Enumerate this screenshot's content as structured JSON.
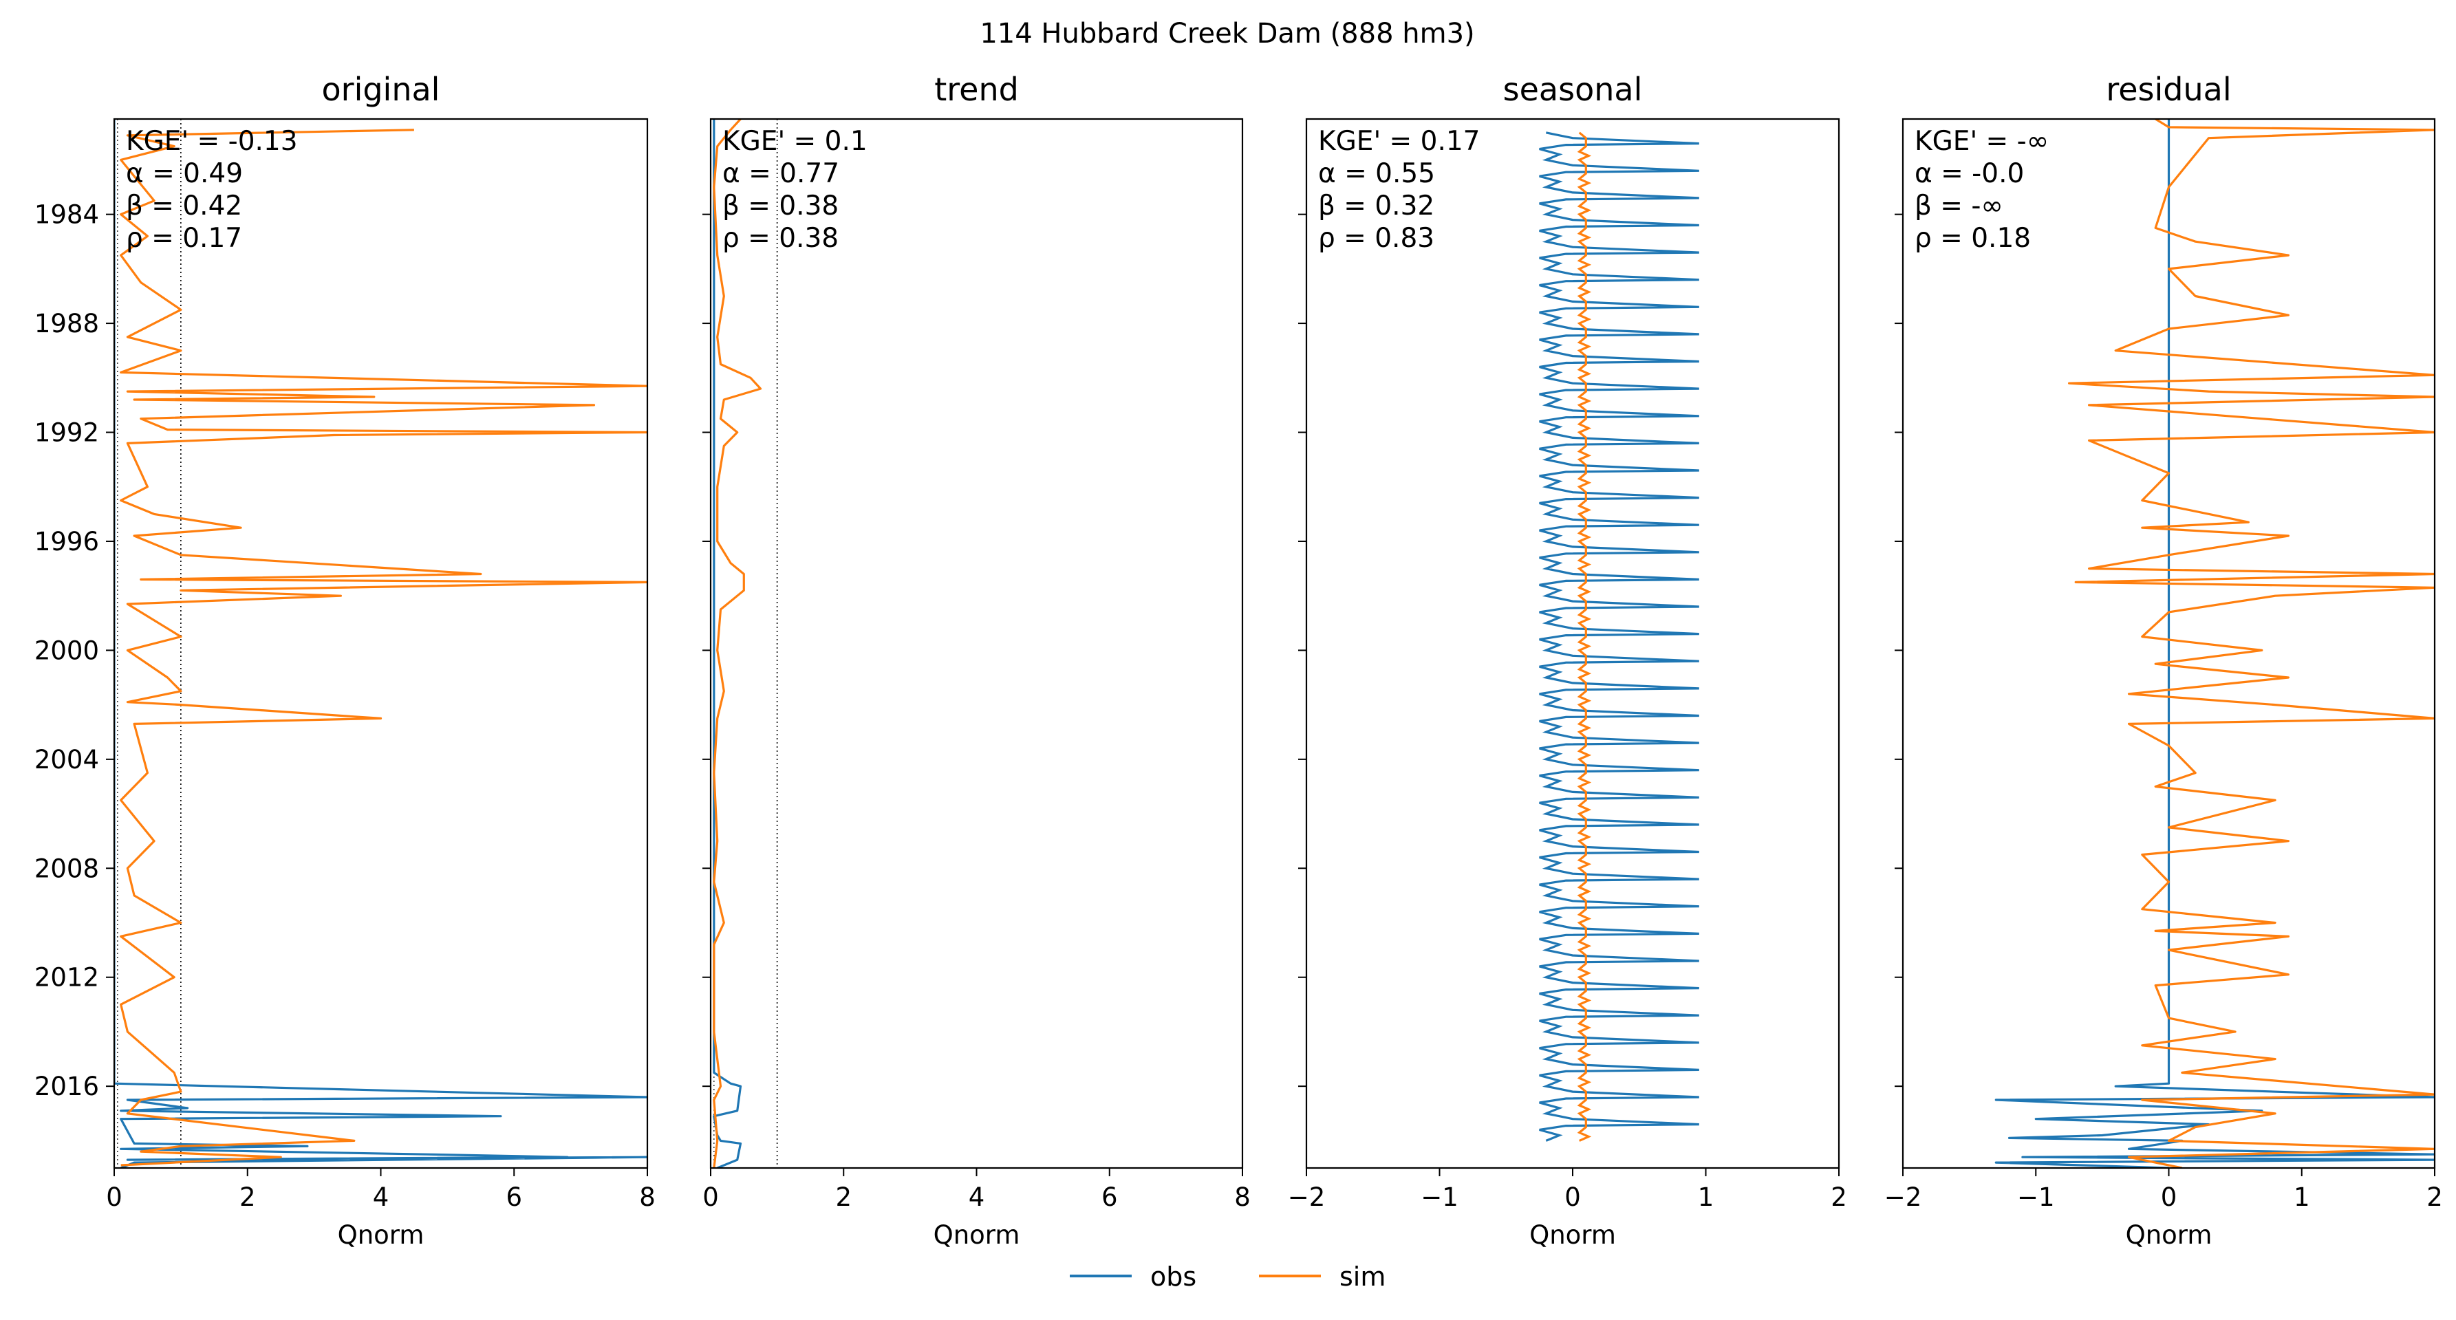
{
  "figure": {
    "title": "114  Hubbard Creek Dam (888 hm3)"
  },
  "colors": {
    "obs": "#1f77b4",
    "sim": "#ff7f0e"
  },
  "legend": [
    {
      "name": "obs",
      "color": "#1f77b4"
    },
    {
      "name": "sim",
      "color": "#ff7f0e"
    }
  ],
  "chart_data": [
    {
      "type": "line",
      "title": "original",
      "xlabel": "Qnorm",
      "xlim": [
        0,
        8
      ],
      "ylim": [
        1980.5,
        2019.0
      ],
      "xticks": [
        "0",
        "2",
        "4",
        "6",
        "8"
      ],
      "yticks": [
        "1984",
        "1988",
        "1992",
        "1996",
        "2000",
        "2004",
        "2008",
        "2012",
        "2016"
      ],
      "reference_line_x": 1,
      "metrics": [
        "KGE' = -0.13",
        "α = 0.49",
        "β = 0.42",
        "ρ = 0.17"
      ],
      "series": [
        {
          "name": "obs",
          "points": [
            [
              0,
              1980.5
            ],
            [
              0,
              2015.9
            ],
            [
              8.0,
              2016.4
            ],
            [
              0.2,
              2016.5
            ],
            [
              1.1,
              2016.8
            ],
            [
              0.1,
              2016.9
            ],
            [
              5.8,
              2017.1
            ],
            [
              0.1,
              2017.2
            ],
            [
              0.3,
              2018.1
            ],
            [
              2.9,
              2018.2
            ],
            [
              0.1,
              2018.3
            ],
            [
              4.7,
              2018.5
            ],
            [
              6.8,
              2018.6
            ],
            [
              0.2,
              2018.7
            ],
            [
              8.0,
              2018.6
            ],
            [
              0.3,
              2018.8
            ],
            [
              0.1,
              2019.0
            ]
          ]
        },
        {
          "name": "sim",
          "points": [
            [
              4.5,
              1980.9
            ],
            [
              0.2,
              1981.1
            ],
            [
              0.9,
              1981.5
            ],
            [
              0.1,
              1982.0
            ],
            [
              0.6,
              1983.5
            ],
            [
              0.1,
              1984.0
            ],
            [
              0.5,
              1984.8
            ],
            [
              0.1,
              1985.5
            ],
            [
              0.4,
              1986.5
            ],
            [
              1.0,
              1987.5
            ],
            [
              0.2,
              1988.5
            ],
            [
              1.0,
              1989.0
            ],
            [
              0.1,
              1989.8
            ],
            [
              8.0,
              1990.3
            ],
            [
              0.2,
              1990.5
            ],
            [
              3.9,
              1990.7
            ],
            [
              0.3,
              1990.8
            ],
            [
              7.2,
              1991.0
            ],
            [
              0.4,
              1991.5
            ],
            [
              0.8,
              1991.9
            ],
            [
              8.0,
              1992.0
            ],
            [
              3.3,
              1992.1
            ],
            [
              0.2,
              1992.4
            ],
            [
              0.5,
              1994.0
            ],
            [
              0.1,
              1994.5
            ],
            [
              0.6,
              1995.0
            ],
            [
              1.9,
              1995.5
            ],
            [
              0.3,
              1995.8
            ],
            [
              1.0,
              1996.5
            ],
            [
              5.5,
              1997.2
            ],
            [
              0.4,
              1997.4
            ],
            [
              8.0,
              1997.5
            ],
            [
              1.0,
              1997.8
            ],
            [
              3.4,
              1998.0
            ],
            [
              0.2,
              1998.3
            ],
            [
              1.0,
              1999.5
            ],
            [
              0.2,
              2000.0
            ],
            [
              0.8,
              2001.0
            ],
            [
              1.0,
              2001.5
            ],
            [
              0.2,
              2001.9
            ],
            [
              1.0,
              2002.0
            ],
            [
              4.0,
              2002.5
            ],
            [
              0.3,
              2002.7
            ],
            [
              0.5,
              2004.5
            ],
            [
              0.1,
              2005.5
            ],
            [
              0.6,
              2007.0
            ],
            [
              0.2,
              2008.0
            ],
            [
              0.3,
              2009.0
            ],
            [
              1.0,
              2010.0
            ],
            [
              0.1,
              2010.5
            ],
            [
              0.9,
              2012.0
            ],
            [
              0.1,
              2013.0
            ],
            [
              0.2,
              2014.0
            ],
            [
              0.9,
              2015.5
            ],
            [
              1.0,
              2016.2
            ],
            [
              0.4,
              2016.5
            ],
            [
              0.2,
              2017.0
            ],
            [
              3.6,
              2018.0
            ],
            [
              1.0,
              2018.2
            ],
            [
              0.4,
              2018.4
            ],
            [
              2.5,
              2018.6
            ],
            [
              0.1,
              2018.9
            ]
          ]
        }
      ]
    },
    {
      "type": "line",
      "title": "trend",
      "xlabel": "Qnorm",
      "xlim": [
        0,
        8
      ],
      "ylim": [
        1980.5,
        2019.0
      ],
      "xticks": [
        "0",
        "2",
        "4",
        "6",
        "8"
      ],
      "yticks": [
        "1984",
        "1988",
        "1992",
        "1996",
        "2000",
        "2004",
        "2008",
        "2012",
        "2016"
      ],
      "reference_line_x": 1,
      "metrics": [
        "KGE' = 0.1",
        "α = 0.77",
        "β = 0.38",
        "ρ = 0.38"
      ],
      "series": [
        {
          "name": "obs",
          "points": [
            [
              0.05,
              1980.5
            ],
            [
              0.05,
              2015.5
            ],
            [
              0.3,
              2015.9
            ],
            [
              0.45,
              2016.0
            ],
            [
              0.4,
              2016.9
            ],
            [
              0.05,
              2017.1
            ],
            [
              0.1,
              2017.8
            ],
            [
              0.15,
              2018.0
            ],
            [
              0.45,
              2018.1
            ],
            [
              0.4,
              2018.7
            ],
            [
              0.1,
              2019.0
            ]
          ]
        },
        {
          "name": "sim",
          "points": [
            [
              0.45,
              1980.5
            ],
            [
              0.3,
              1980.9
            ],
            [
              0.1,
              1981.5
            ],
            [
              0.05,
              1983.0
            ],
            [
              0.1,
              1985.5
            ],
            [
              0.2,
              1987.0
            ],
            [
              0.1,
              1988.5
            ],
            [
              0.15,
              1989.5
            ],
            [
              0.6,
              1990.0
            ],
            [
              0.75,
              1990.4
            ],
            [
              0.2,
              1990.8
            ],
            [
              0.15,
              1991.5
            ],
            [
              0.4,
              1992.0
            ],
            [
              0.2,
              1992.5
            ],
            [
              0.1,
              1994.0
            ],
            [
              0.1,
              1996.0
            ],
            [
              0.3,
              1996.8
            ],
            [
              0.5,
              1997.2
            ],
            [
              0.5,
              1997.8
            ],
            [
              0.15,
              1998.5
            ],
            [
              0.1,
              2000.0
            ],
            [
              0.2,
              2001.5
            ],
            [
              0.1,
              2002.5
            ],
            [
              0.05,
              2004.5
            ],
            [
              0.1,
              2007.0
            ],
            [
              0.05,
              2008.5
            ],
            [
              0.15,
              2009.5
            ],
            [
              0.2,
              2010.0
            ],
            [
              0.05,
              2010.8
            ],
            [
              0.05,
              2014.0
            ],
            [
              0.15,
              2016.0
            ],
            [
              0.05,
              2016.5
            ],
            [
              0.1,
              2018.0
            ],
            [
              0.05,
              2019.0
            ]
          ]
        }
      ]
    },
    {
      "type": "line",
      "title": "seasonal",
      "xlabel": "Qnorm",
      "xlim": [
        -2,
        2
      ],
      "ylim": [
        1980.5,
        2019.0
      ],
      "xticks": [
        "−2",
        "−1",
        "0",
        "1",
        "2"
      ],
      "yticks": [
        "1984",
        "1988",
        "1992",
        "1996",
        "2000",
        "2004",
        "2008",
        "2012",
        "2016"
      ],
      "reference_line_x": null,
      "metrics": [
        "KGE' = 0.17",
        "α = 0.55",
        "β = 0.32",
        "ρ = 0.83"
      ],
      "pattern": {
        "kind": "annual-cycle",
        "start_year": 1981,
        "end_year": 2018,
        "obs_profile": [
          [
            -0.2,
            0.0
          ],
          [
            -0.1,
            0.1
          ],
          [
            0.0,
            0.2
          ],
          [
            0.95,
            0.4
          ],
          [
            -0.05,
            0.45
          ],
          [
            -0.25,
            0.6
          ],
          [
            -0.1,
            0.8
          ],
          [
            -0.2,
            1.0
          ]
        ],
        "sim_profile": [
          [
            0.05,
            0.0
          ],
          [
            0.1,
            0.2
          ],
          [
            0.1,
            0.5
          ],
          [
            0.05,
            0.7
          ],
          [
            0.12,
            0.85
          ],
          [
            0.05,
            1.0
          ]
        ]
      }
    },
    {
      "type": "line",
      "title": "residual",
      "xlabel": "Qnorm",
      "xlim": [
        -2,
        2
      ],
      "ylim": [
        1980.5,
        2019.0
      ],
      "xticks": [
        "−2",
        "−1",
        "0",
        "1",
        "2"
      ],
      "yticks": [
        "1984",
        "1988",
        "1992",
        "1996",
        "2000",
        "2004",
        "2008",
        "2012",
        "2016"
      ],
      "reference_line_x": null,
      "metrics": [
        "KGE' = -∞",
        "α = -0.0",
        "β = -∞",
        "ρ = 0.18"
      ],
      "series": [
        {
          "name": "obs",
          "points": [
            [
              0,
              1980.5
            ],
            [
              0,
              2015.9
            ],
            [
              -0.4,
              2016.0
            ],
            [
              2.0,
              2016.4
            ],
            [
              -1.3,
              2016.5
            ],
            [
              0.7,
              2016.9
            ],
            [
              -1.0,
              2017.2
            ],
            [
              0.3,
              2017.4
            ],
            [
              -0.5,
              2017.8
            ],
            [
              -1.2,
              2017.9
            ],
            [
              0.1,
              2018.0
            ],
            [
              -0.3,
              2018.3
            ],
            [
              2.0,
              2018.5
            ],
            [
              -1.1,
              2018.6
            ],
            [
              2.0,
              2018.7
            ],
            [
              -1.3,
              2018.8
            ],
            [
              0.0,
              2019.0
            ]
          ]
        },
        {
          "name": "sim",
          "points": [
            [
              -0.1,
              1980.5
            ],
            [
              0.0,
              1980.8
            ],
            [
              2.0,
              1980.9
            ],
            [
              0.3,
              1981.2
            ],
            [
              0.0,
              1983.0
            ],
            [
              -0.1,
              1984.5
            ],
            [
              0.2,
              1985.0
            ],
            [
              0.9,
              1985.5
            ],
            [
              0.0,
              1986.0
            ],
            [
              0.2,
              1987.0
            ],
            [
              0.9,
              1987.7
            ],
            [
              0.0,
              1988.2
            ],
            [
              -0.4,
              1989.0
            ],
            [
              2.0,
              1989.9
            ],
            [
              -0.75,
              1990.2
            ],
            [
              0.3,
              1990.5
            ],
            [
              2.0,
              1990.7
            ],
            [
              -0.6,
              1991.0
            ],
            [
              0.7,
              1991.5
            ],
            [
              2.0,
              1992.0
            ],
            [
              -0.6,
              1992.3
            ],
            [
              0.0,
              1993.5
            ],
            [
              -0.2,
              1994.5
            ],
            [
              0.6,
              1995.3
            ],
            [
              -0.2,
              1995.5
            ],
            [
              0.9,
              1995.8
            ],
            [
              0.0,
              1996.5
            ],
            [
              -0.6,
              1997.0
            ],
            [
              2.0,
              1997.2
            ],
            [
              -0.7,
              1997.5
            ],
            [
              2.0,
              1997.7
            ],
            [
              0.8,
              1998.0
            ],
            [
              0.0,
              1998.6
            ],
            [
              -0.2,
              1999.5
            ],
            [
              0.7,
              2000.0
            ],
            [
              -0.1,
              2000.5
            ],
            [
              0.9,
              2001.0
            ],
            [
              -0.3,
              2001.6
            ],
            [
              0.8,
              2002.0
            ],
            [
              2.0,
              2002.5
            ],
            [
              -0.3,
              2002.7
            ],
            [
              0.0,
              2003.5
            ],
            [
              0.2,
              2004.5
            ],
            [
              -0.1,
              2005.0
            ],
            [
              0.8,
              2005.5
            ],
            [
              0.0,
              2006.5
            ],
            [
              0.9,
              2007.0
            ],
            [
              -0.2,
              2007.5
            ],
            [
              0.0,
              2008.5
            ],
            [
              -0.2,
              2009.5
            ],
            [
              0.8,
              2010.0
            ],
            [
              -0.1,
              2010.3
            ],
            [
              0.9,
              2010.5
            ],
            [
              0.0,
              2011.0
            ],
            [
              0.9,
              2011.9
            ],
            [
              -0.1,
              2012.3
            ],
            [
              0.0,
              2013.5
            ],
            [
              0.5,
              2014.0
            ],
            [
              -0.2,
              2014.5
            ],
            [
              0.8,
              2015.0
            ],
            [
              0.1,
              2015.5
            ],
            [
              2.0,
              2016.3
            ],
            [
              -0.2,
              2016.5
            ],
            [
              0.8,
              2017.0
            ],
            [
              0.2,
              2017.5
            ],
            [
              0.0,
              2018.0
            ],
            [
              2.0,
              2018.3
            ],
            [
              -0.3,
              2018.6
            ],
            [
              0.1,
              2019.0
            ]
          ]
        }
      ]
    }
  ]
}
